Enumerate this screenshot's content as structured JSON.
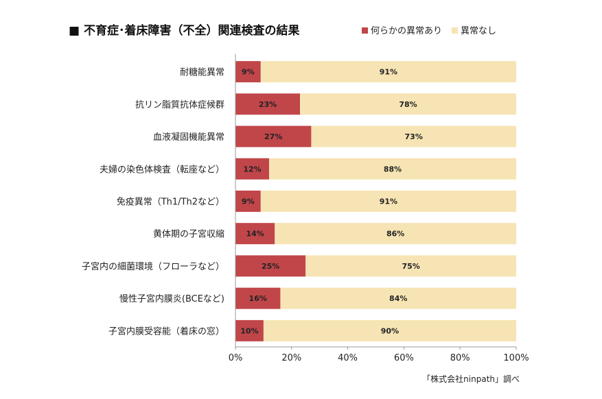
{
  "chart_data": {
    "type": "bar",
    "orientation": "horizontal",
    "stacked": true,
    "title": "■ 不育症･着床障害（不全）関連検査の結果",
    "categories": [
      "耐糖能異常",
      "抗リン脂質抗体症候群",
      "血液凝固機能異常",
      "夫婦の染色体検査（転座など）",
      "免疫異常（Th1/Th2など）",
      "黄体期の子宮収縮",
      "子宮内の細菌環境（フローラなど）",
      "慢性子宮内膜炎(BCEなど)",
      "子宮内膜受容能（着床の窓）"
    ],
    "series": [
      {
        "name": "何らかの異常あり",
        "color": "#c0464a",
        "values": [
          9,
          23,
          27,
          12,
          9,
          14,
          25,
          16,
          10
        ],
        "labels": [
          "9%",
          "23%",
          "27%",
          "12%",
          "9%",
          "14%",
          "25%",
          "16%",
          "10%"
        ]
      },
      {
        "name": "異常なし",
        "color": "#f7e4b4",
        "values": [
          91,
          78,
          73,
          88,
          91,
          86,
          75,
          84,
          90
        ],
        "labels": [
          "91%",
          "78%",
          "73%",
          "88%",
          "91%",
          "86%",
          "75%",
          "84%",
          "90%"
        ]
      }
    ],
    "xlim": [
      0,
      100
    ],
    "xticks": [
      0,
      20,
      40,
      60,
      80,
      100
    ],
    "xtick_labels": [
      "0%",
      "20%",
      "40%",
      "60%",
      "80%",
      "100%"
    ],
    "legend_position": "top-right",
    "grid": false,
    "source": "「株式会社ninpath」調べ"
  }
}
